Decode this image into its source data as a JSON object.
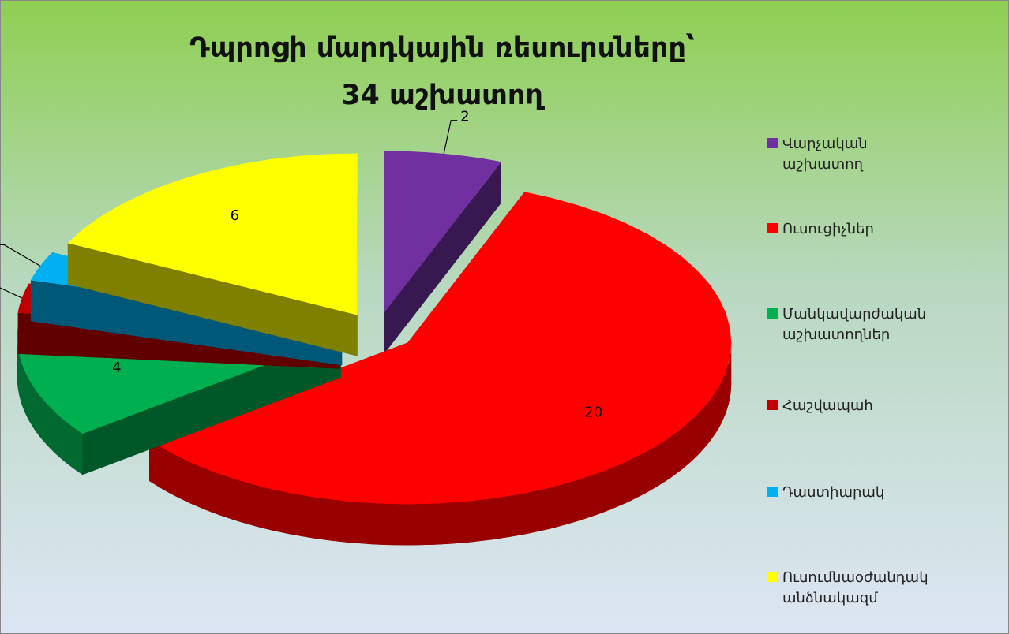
{
  "chart_data": {
    "type": "pie3d",
    "title": [
      "Դպրոցի մարդկային ռեսուրսները՝",
      "34 աշխատող"
    ],
    "categories": [
      "Վարչական աշխատող",
      "Ուսուցիչներ",
      "Մանկավարժական աշխատողներ",
      "Հաշվապահ",
      "Դաստիարակ",
      "Ուսումնաօժանդակ անձնակազմ"
    ],
    "values": [
      2,
      20,
      4,
      1,
      1,
      6
    ],
    "colors": [
      "#7030a0",
      "#ff0000",
      "#00b050",
      "#c00000",
      "#00b0f0",
      "#ffff00"
    ],
    "legend": "right"
  }
}
